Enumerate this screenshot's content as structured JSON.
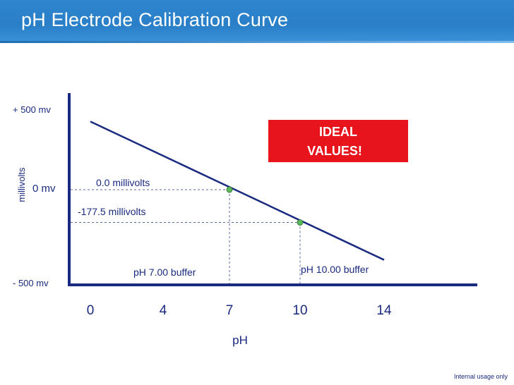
{
  "header": {
    "title": "pH Electrode Calibration Curve"
  },
  "footer": {
    "note": "Internal usage only"
  },
  "chart_data": {
    "type": "line",
    "title": "",
    "xlabel": "pH",
    "ylabel": "millivolts",
    "xlim": [
      0,
      14
    ],
    "ylim": [
      -500,
      500
    ],
    "x_ticks": [
      0,
      4,
      7,
      10,
      14
    ],
    "x_tick_labels": [
      "0",
      "4",
      "7",
      "10",
      "14"
    ],
    "y_tick_labels": [
      {
        "value": 500,
        "label": "+ 500 mv"
      },
      {
        "value": 0,
        "label": "0 mv"
      },
      {
        "value": -500,
        "label": "- 500 mv"
      }
    ],
    "grid": false,
    "legend": "none",
    "line_color": "#1a2a80",
    "point_color": "#5cb85c",
    "series": [
      {
        "x": [
          0,
          14
        ],
        "y": [
          420,
          -380
        ]
      }
    ],
    "points": [
      {
        "x": 7,
        "y": 0,
        "value_label": "0.0 millivolts",
        "buffer_label": "pH 7.00 buffer"
      },
      {
        "x": 10,
        "y": -177.5,
        "value_label": "-177.5 millivolts",
        "buffer_label": "pH 10.00 buffer"
      }
    ],
    "annotation": {
      "text": "IDEAL VALUES!",
      "color": "#e8141c"
    }
  }
}
